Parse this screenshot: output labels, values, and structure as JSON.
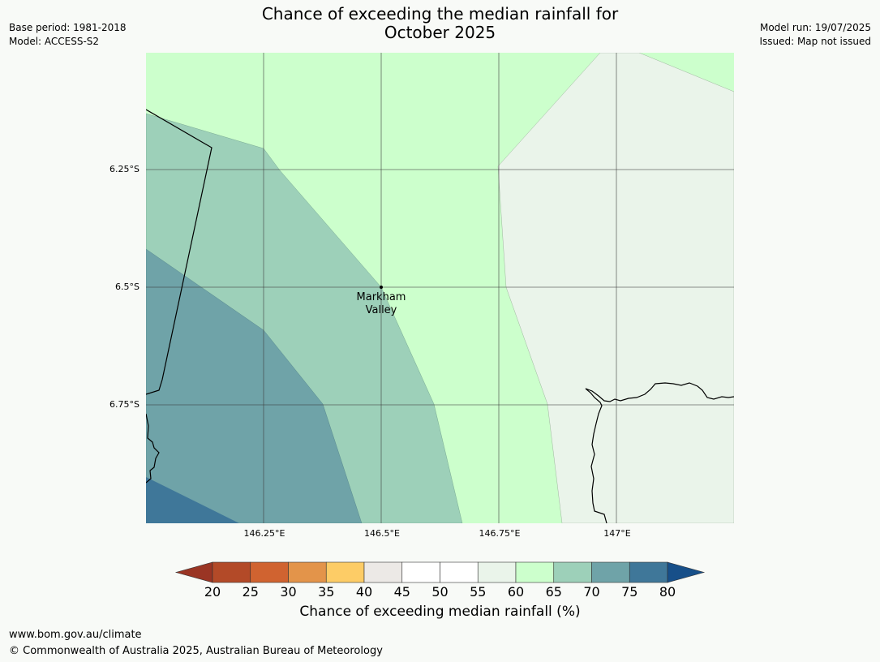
{
  "title": {
    "line1": "Chance of exceeding the median rainfall for",
    "line2": "October 2025"
  },
  "meta": {
    "base_period": "Base period: 1981-2018",
    "model": "Model: ACCESS-S2",
    "model_run": "Model run: 19/07/2025",
    "issued": "Issued: Map not issued"
  },
  "map": {
    "lat_labels": [
      "6.25°S",
      "6.5°S",
      "6.75°S"
    ],
    "lon_labels": [
      "146.25°E",
      "146.5°E",
      "146.75°E",
      "147°E"
    ],
    "place": {
      "line1": "Markham",
      "line2": "Valley"
    },
    "zones": [
      {
        "name": "60-65",
        "color": "#ccffcc"
      },
      {
        "name": "55-60",
        "color": "#eaf4ea"
      },
      {
        "name": "65-70",
        "color": "#9dd0b9"
      },
      {
        "name": "70-75",
        "color": "#6fa3a8"
      },
      {
        "name": "75-80",
        "color": "#3f7799"
      }
    ]
  },
  "colorbar": {
    "ticks": [
      "20",
      "25",
      "30",
      "35",
      "40",
      "45",
      "50",
      "55",
      "60",
      "65",
      "70",
      "75",
      "80"
    ],
    "low_extend_color": "#9a3524",
    "high_extend_color": "#174f89",
    "bin_colors": [
      "#b34a28",
      "#d06330",
      "#e3944a",
      "#fdcc66",
      "#ece9e6",
      "#ffffff",
      "#ffffff",
      "#eaf4ea",
      "#ccffcc",
      "#9dd0b9",
      "#6fa3a8",
      "#3f7799"
    ],
    "title": "Chance of exceeding median rainfall (%)"
  },
  "footer": {
    "url": "www.bom.gov.au/climate",
    "copyright": "© Commonwealth of Australia 2025, Australian Bureau of Meteorology"
  }
}
